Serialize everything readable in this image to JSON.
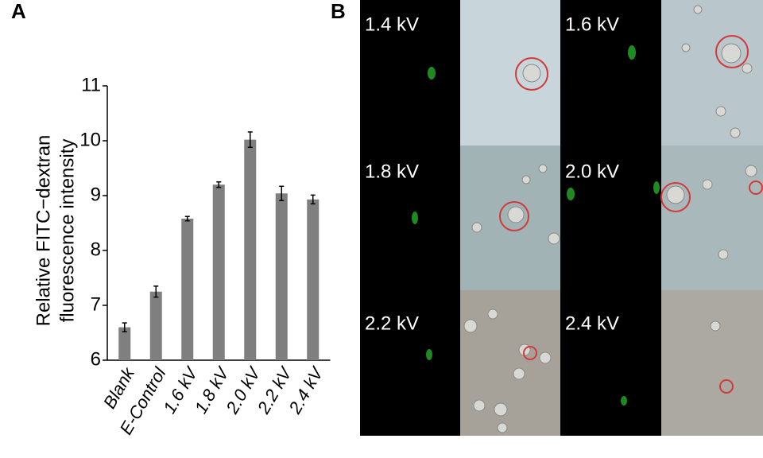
{
  "panel_labels": [
    "A",
    "B"
  ],
  "chart_data": {
    "type": "bar",
    "ylabel": [
      "Relative FITC−dextran",
      "fluorescence intensity"
    ],
    "categories": [
      "Blank",
      "E-Control",
      "1.6 kV",
      "1.8 kV",
      "2.0 kV",
      "2.2 kV",
      "2.4 kV"
    ],
    "values": [
      6.6,
      7.25,
      8.58,
      9.2,
      10.02,
      9.04,
      8.93
    ],
    "errors": [
      0.08,
      0.1,
      0.04,
      0.05,
      0.14,
      0.13,
      0.08
    ],
    "color": "#7f7f7f",
    "ylim": [
      6,
      11
    ],
    "yticks": [
      6,
      7,
      8,
      9,
      10,
      11
    ]
  },
  "micrographs": {
    "labels": [
      "1.4 kV",
      "1.6 kV",
      "1.8 kV",
      "2.0 kV",
      "2.2 kV",
      "2.4 kV"
    ]
  }
}
